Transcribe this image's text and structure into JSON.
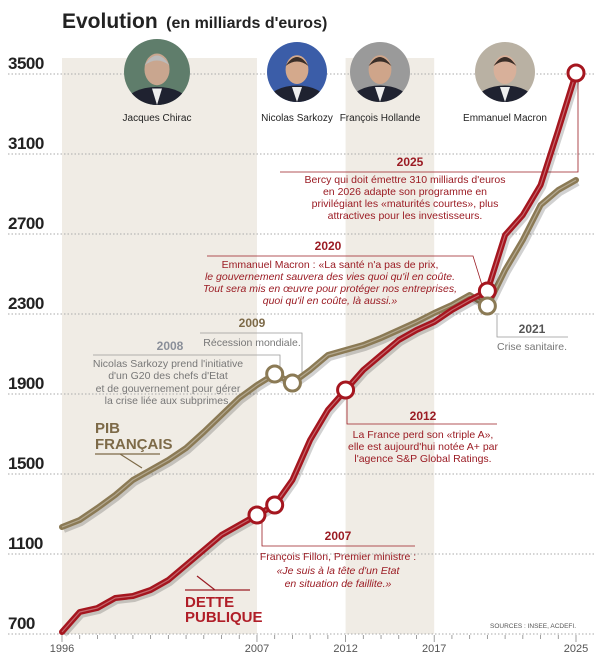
{
  "chart_data": {
    "type": "line",
    "title": "Evolution",
    "subtitle": "(en milliards d'euros)",
    "ylim": [
      700,
      3500
    ],
    "yticks": [
      "3500",
      "3100",
      "2700",
      "2300",
      "1900",
      "1500",
      "1100",
      "700"
    ],
    "ytick_values": [
      3500,
      3100,
      2700,
      2300,
      1900,
      1500,
      1100,
      700
    ],
    "xlim": [
      1996,
      2025
    ],
    "xticks": [
      "1996",
      "2007",
      "2012",
      "2017",
      "2025"
    ],
    "xtick_values": [
      1996,
      2007,
      2012,
      2017,
      2025
    ],
    "grid": "horizontal dotted",
    "x": [
      1996,
      1997,
      1998,
      1999,
      2000,
      2001,
      2002,
      2003,
      2004,
      2005,
      2006,
      2007,
      2008,
      2009,
      2010,
      2011,
      2012,
      2013,
      2014,
      2015,
      2016,
      2017,
      2018,
      2019,
      2020,
      2021,
      2022,
      2023,
      2024,
      2025
    ],
    "series": [
      {
        "name": "PIB FRANÇAIS",
        "color": "#8b7a55",
        "values": [
          1235,
          1270,
          1330,
          1395,
          1470,
          1520,
          1570,
          1630,
          1710,
          1795,
          1880,
          1945,
          2000,
          1955,
          2020,
          2095,
          2120,
          2145,
          2180,
          2220,
          2260,
          2305,
          2345,
          2395,
          2340,
          2520,
          2670,
          2845,
          2920,
          2970
        ]
      },
      {
        "name": "DETTE PUBLIQUE",
        "color": "#a5161f",
        "values": [
          710,
          810,
          830,
          880,
          890,
          920,
          970,
          1045,
          1120,
          1195,
          1245,
          1295,
          1345,
          1470,
          1670,
          1820,
          1920,
          2020,
          2095,
          2170,
          2220,
          2260,
          2320,
          2370,
          2415,
          2695,
          2795,
          2945,
          3220,
          3505
        ]
      }
    ],
    "markers": [
      {
        "series": "DETTE PUBLIQUE",
        "x": 2007,
        "y": 1295
      },
      {
        "series": "DETTE PUBLIQUE",
        "x": 2008,
        "y": 1345
      },
      {
        "series": "DETTE PUBLIQUE",
        "x": 2012,
        "y": 1920
      },
      {
        "series": "DETTE PUBLIQUE",
        "x": 2020,
        "y": 2415
      },
      {
        "series": "DETTE PUBLIQUE",
        "x": 2025,
        "y": 3505
      },
      {
        "series": "PIB FRANÇAIS",
        "x": 2008,
        "y": 2000
      },
      {
        "series": "PIB FRANÇAIS",
        "x": 2009,
        "y": 1955
      },
      {
        "series": "PIB FRANÇAIS",
        "x": 2020,
        "y": 2340
      }
    ],
    "presidencies": [
      {
        "name": "Jacques Chirac",
        "from": 1996,
        "to": 2007,
        "shaded": true
      },
      {
        "name": "Nicolas Sarkozy",
        "from": 2007,
        "to": 2012,
        "shaded": false
      },
      {
        "name": "François Hollande",
        "from": 2012,
        "to": 2017,
        "shaded": true
      },
      {
        "name": "Emmanuel Macron",
        "from": 2017,
        "to": 2025,
        "shaded": false
      }
    ],
    "annotations": {
      "a2025": {
        "year": "2025",
        "lines": [
          "Bercy qui doit émettre 310 milliards d'euros",
          "en 2026 adapte son programme en",
          "privilégiant les «maturités courtes», plus",
          "attractives pour les investisseurs."
        ]
      },
      "a2020": {
        "year": "2020",
        "lines": [
          "Emmanuel Macron : «La santé n'a pas de prix,",
          "le gouvernement sauvera des vies quoi qu'il en coûte.",
          "Tout sera mis en œuvre pour protéger nos entreprises,",
          "quoi qu'il en coûte, là aussi.»"
        ]
      },
      "a2009": {
        "year": "2009",
        "lines": [
          "Récession mondiale."
        ]
      },
      "a2008": {
        "year": "2008",
        "lines": [
          "Nicolas Sarkozy prend l'initiative",
          "d'un G20 des chefs d'Etat",
          "et de gouvernement pour gérer",
          "la crise liée aux subprimes."
        ]
      },
      "a2012": {
        "year": "2012",
        "lines": [
          "La France perd son «triple A»,",
          "elle est aujourd'hui notée A+ par",
          "l'agence S&P Global Ratings."
        ]
      },
      "a2021": {
        "year": "2021",
        "lines": [
          "Crise sanitaire."
        ]
      },
      "a2007": {
        "year": "2007",
        "lines": [
          "François Fillon, Premier ministre :",
          "«Je suis à la tête d'un Etat",
          "en situation de faillite.»"
        ]
      }
    },
    "series_labels": {
      "pib": [
        "PIB",
        "FRANÇAIS"
      ],
      "dette": [
        "DETTE",
        "PUBLIQUE"
      ]
    },
    "source": "SOURCES : INSEE, ACDEFI."
  }
}
